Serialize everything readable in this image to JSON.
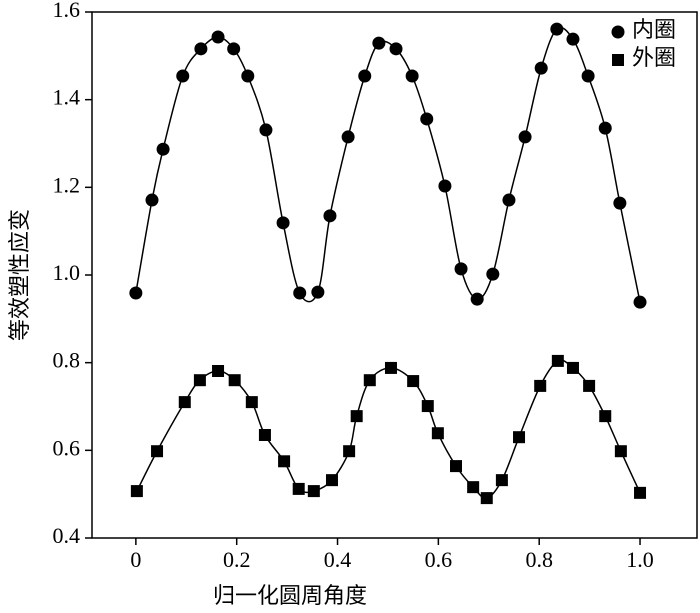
{
  "chart_data": {
    "type": "scatter",
    "xlabel": "归一化圆周角度",
    "ylabel": "等效塑性应变",
    "xlim": [
      -0.087,
      1.113
    ],
    "ylim": [
      0.4,
      1.6
    ],
    "xticks": [
      0,
      0.2,
      0.4,
      0.6,
      0.8,
      {
        "value": 1,
        "label": "1.0"
      }
    ],
    "yticks": [
      0.4,
      0.6,
      0.8,
      {
        "value": 1,
        "label": "1.0"
      },
      1.2,
      1.4,
      1.6
    ],
    "legend": "upper right",
    "series": [
      {
        "name": "内圈",
        "color": "#000000",
        "marker": "circle",
        "x": [
          0.0,
          0.032,
          0.054,
          0.093,
          0.129,
          0.163,
          0.194,
          0.222,
          0.258,
          0.292,
          0.325,
          0.361,
          0.385,
          0.421,
          0.454,
          0.482,
          0.516,
          0.548,
          0.577,
          0.613,
          0.645,
          0.677,
          0.708,
          0.74,
          0.772,
          0.804,
          0.835,
          0.867,
          0.897,
          0.931,
          0.96,
          1.0
        ],
        "values": [
          0.959,
          1.171,
          1.287,
          1.454,
          1.516,
          1.543,
          1.516,
          1.454,
          1.331,
          1.119,
          0.959,
          0.961,
          1.135,
          1.315,
          1.454,
          1.529,
          1.516,
          1.454,
          1.356,
          1.203,
          1.014,
          0.945,
          1.002,
          1.171,
          1.315,
          1.472,
          1.561,
          1.538,
          1.454,
          1.335,
          1.164,
          0.938
        ]
      },
      {
        "name": "外圈",
        "color": "#000000",
        "marker": "square",
        "x": [
          0.002,
          0.042,
          0.097,
          0.127,
          0.163,
          0.196,
          0.23,
          0.256,
          0.294,
          0.323,
          0.353,
          0.389,
          0.423,
          0.438,
          0.464,
          0.506,
          0.55,
          0.579,
          0.599,
          0.635,
          0.669,
          0.696,
          0.726,
          0.76,
          0.802,
          0.837,
          0.867,
          0.899,
          0.931,
          0.962,
          1.0
        ],
        "values": [
          0.507,
          0.598,
          0.71,
          0.76,
          0.781,
          0.76,
          0.71,
          0.635,
          0.575,
          0.512,
          0.507,
          0.532,
          0.598,
          0.678,
          0.76,
          0.788,
          0.758,
          0.701,
          0.639,
          0.564,
          0.516,
          0.491,
          0.532,
          0.63,
          0.747,
          0.804,
          0.788,
          0.747,
          0.678,
          0.598,
          0.503
        ]
      }
    ]
  }
}
